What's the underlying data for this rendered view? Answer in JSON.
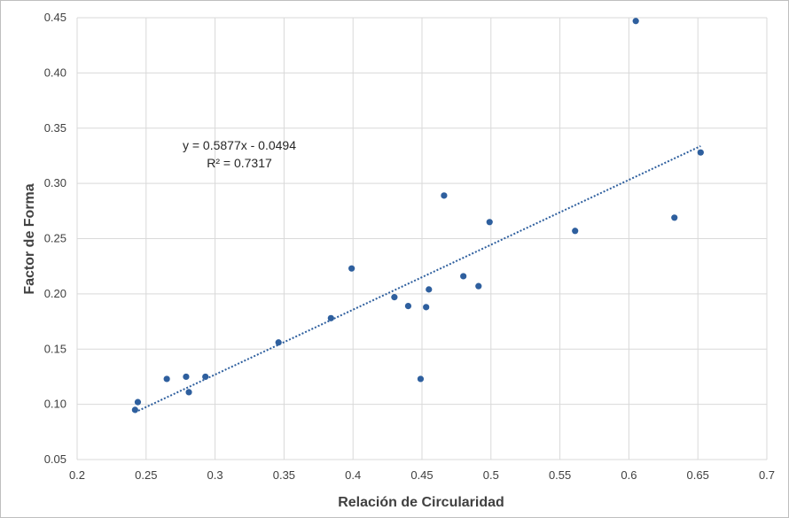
{
  "chart_data": {
    "type": "scatter",
    "xlabel": "Relación de Circularidad",
    "ylabel": "Factor de Forma",
    "xlim": [
      0.2,
      0.7
    ],
    "ylim": [
      0.05,
      0.45
    ],
    "x_ticks": [
      "0.2",
      "0.25",
      "0.3",
      "0.35",
      "0.4",
      "0.45",
      "0.5",
      "0.55",
      "0.6",
      "0.65",
      "0.7"
    ],
    "y_ticks": [
      "0.05",
      "0.10",
      "0.15",
      "0.20",
      "0.25",
      "0.30",
      "0.35",
      "0.40",
      "0.45"
    ],
    "grid": true,
    "series": [
      {
        "color": "#2e5f9e",
        "points": [
          {
            "x": 0.242,
            "y": 0.095
          },
          {
            "x": 0.244,
            "y": 0.102
          },
          {
            "x": 0.265,
            "y": 0.123
          },
          {
            "x": 0.279,
            "y": 0.125
          },
          {
            "x": 0.281,
            "y": 0.111
          },
          {
            "x": 0.293,
            "y": 0.125
          },
          {
            "x": 0.346,
            "y": 0.156
          },
          {
            "x": 0.384,
            "y": 0.178
          },
          {
            "x": 0.399,
            "y": 0.223
          },
          {
            "x": 0.43,
            "y": 0.197
          },
          {
            "x": 0.44,
            "y": 0.189
          },
          {
            "x": 0.449,
            "y": 0.123
          },
          {
            "x": 0.453,
            "y": 0.188
          },
          {
            "x": 0.455,
            "y": 0.204
          },
          {
            "x": 0.466,
            "y": 0.289
          },
          {
            "x": 0.48,
            "y": 0.216
          },
          {
            "x": 0.491,
            "y": 0.207
          },
          {
            "x": 0.499,
            "y": 0.265
          },
          {
            "x": 0.561,
            "y": 0.257
          },
          {
            "x": 0.605,
            "y": 0.447
          },
          {
            "x": 0.633,
            "y": 0.269
          },
          {
            "x": 0.652,
            "y": 0.328
          }
        ]
      }
    ],
    "trendline": {
      "slope": 0.5877,
      "intercept": -0.0494,
      "x_range": [
        0.242,
        0.652
      ],
      "equation": "y = 0.5877x - 0.0494",
      "r2": "R² = 0.7317"
    }
  }
}
